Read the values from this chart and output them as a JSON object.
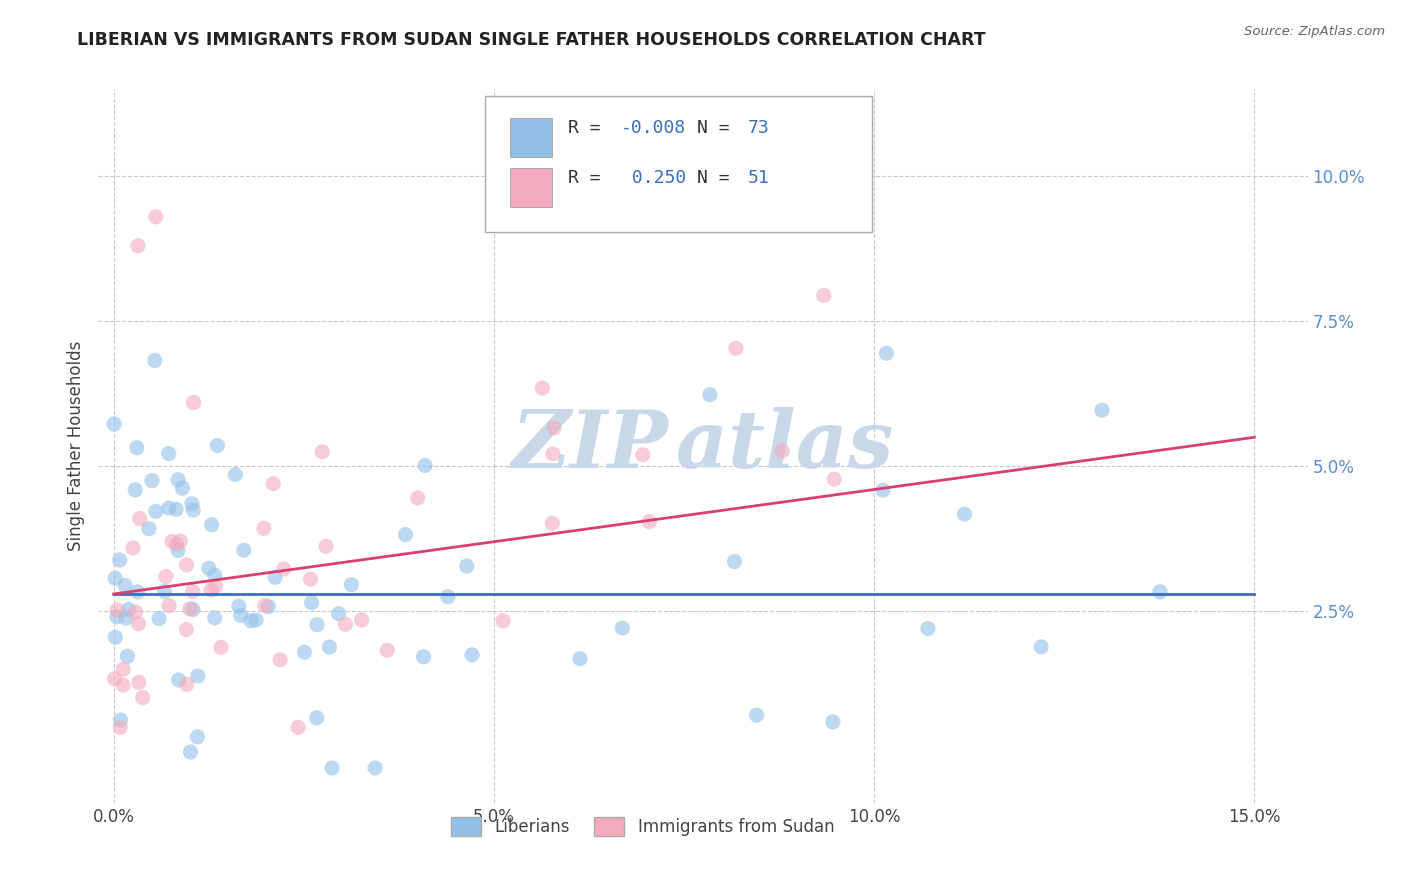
{
  "title": "LIBERIAN VS IMMIGRANTS FROM SUDAN SINGLE FATHER HOUSEHOLDS CORRELATION CHART",
  "source": "Source: ZipAtlas.com",
  "ylabel": "Single Father Households",
  "xlim": [
    -0.002,
    0.157
  ],
  "ylim": [
    -0.008,
    0.115
  ],
  "xticks": [
    0.0,
    0.05,
    0.1,
    0.15
  ],
  "xtick_labels": [
    "0.0%",
    "5.0%",
    "10.0%",
    "15.0%"
  ],
  "yticks": [
    0.025,
    0.05,
    0.075,
    0.1
  ],
  "ytick_labels": [
    "2.5%",
    "5.0%",
    "7.5%",
    "10.0%"
  ],
  "legend_label1": "Liberians",
  "legend_label2": "Immigrants from Sudan",
  "color_blue": "#92C0E8",
  "color_pink": "#F4AABC",
  "color_blue_line": "#3A6EC4",
  "color_pink_line": "#D94070",
  "color_ytick": "#5A8CD4",
  "watermark_color": "#C8D8E8",
  "lib_R": "-0.008",
  "lib_N": "73",
  "sud_R": "0.250",
  "sud_N": "51",
  "blue_line_y0": 0.028,
  "blue_line_y1": 0.028,
  "pink_line_y0": 0.028,
  "pink_line_y1": 0.055
}
